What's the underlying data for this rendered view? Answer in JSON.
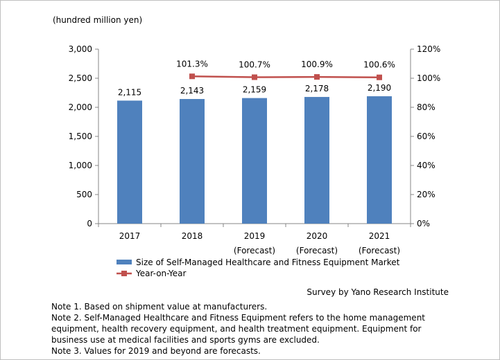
{
  "chart_data": {
    "type": "bar",
    "unit_label": "(hundred million yen)",
    "categories": [
      {
        "year": "2017",
        "sub": ""
      },
      {
        "year": "2018",
        "sub": ""
      },
      {
        "year": "2019",
        "sub": "(Forecast)"
      },
      {
        "year": "2020",
        "sub": "(Forecast)"
      },
      {
        "year": "2021",
        "sub": "(Forecast)"
      }
    ],
    "series": [
      {
        "name": "Size of Self-Managed Healthcare and Fitness Equipment Market",
        "type": "bar",
        "axis": "left",
        "color": "#4f81bd",
        "values": [
          2115,
          2143,
          2159,
          2178,
          2190
        ],
        "labels": [
          "2,115",
          "2,143",
          "2,159",
          "2,178",
          "2,190"
        ]
      },
      {
        "name": "Year-on-Year",
        "type": "line",
        "axis": "right",
        "color": "#c0504d",
        "values": [
          null,
          101.3,
          100.7,
          100.9,
          100.6
        ],
        "labels": [
          "",
          "101.3%",
          "100.7%",
          "100.9%",
          "100.6%"
        ]
      }
    ],
    "y_left": {
      "min": 0,
      "max": 3000,
      "ticks": [
        0,
        500,
        1000,
        1500,
        2000,
        2500,
        3000
      ],
      "tick_labels": [
        "0",
        "500",
        "1,000",
        "1,500",
        "2,000",
        "2,500",
        "3,000"
      ]
    },
    "y_right": {
      "min": 0,
      "max": 120,
      "ticks": [
        0,
        20,
        40,
        60,
        80,
        100,
        120
      ],
      "tick_labels": [
        "0%",
        "20%",
        "40%",
        "60%",
        "80%",
        "100%",
        "120%"
      ]
    },
    "grid": false,
    "legend_position": "bottom"
  },
  "source": "Survey by Yano Research Institute",
  "notes": [
    "Note 1. Based on shipment value at manufacturers.",
    "Note 2. Self-Managed Healthcare and Fitness Equipment refers to the home management equipment, health recovery equipment, and health treatment equipment. Equipment for business use at medical facilities and sports gyms are excluded.",
    "Note 3. Values for 2019 and beyond are forecasts."
  ]
}
